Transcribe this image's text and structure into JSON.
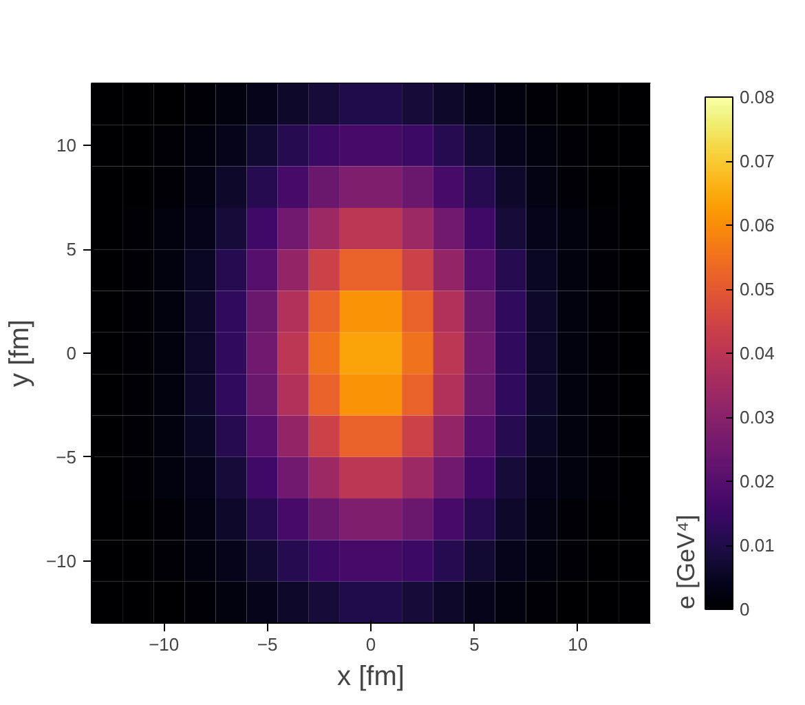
{
  "chart_data": {
    "type": "heatmap",
    "xlabel": "x [fm]",
    "ylabel": "y [fm]",
    "clabel": "e [GeV⁴]",
    "x": [
      -12.75,
      -11.25,
      -9.75,
      -8.25,
      -6.75,
      -5.25,
      -3.75,
      -2.25,
      -0.75,
      0.75,
      2.25,
      3.75,
      5.25,
      6.75,
      8.25,
      9.75,
      11.25,
      12.75
    ],
    "y": [
      12,
      10,
      8,
      6,
      4,
      2,
      0,
      -2,
      -4,
      -6,
      -8,
      -10,
      -12
    ],
    "cells": [
      [
        0.0,
        0.0,
        0.0,
        0.001,
        0.002,
        0.004,
        0.006,
        0.008,
        0.01,
        0.01,
        0.008,
        0.006,
        0.004,
        0.002,
        0.001,
        0.0,
        0.0,
        0.0
      ],
      [
        0.0,
        0.0,
        0.001,
        0.002,
        0.004,
        0.007,
        0.011,
        0.015,
        0.017,
        0.017,
        0.015,
        0.011,
        0.007,
        0.004,
        0.002,
        0.001,
        0.0,
        0.0
      ],
      [
        0.0,
        0.0,
        0.001,
        0.003,
        0.006,
        0.011,
        0.017,
        0.024,
        0.028,
        0.028,
        0.024,
        0.017,
        0.011,
        0.006,
        0.003,
        0.001,
        0.0,
        0.0
      ],
      [
        0.0,
        0.001,
        0.002,
        0.004,
        0.008,
        0.016,
        0.025,
        0.034,
        0.04,
        0.04,
        0.034,
        0.025,
        0.016,
        0.008,
        0.004,
        0.002,
        0.001,
        0.0
      ],
      [
        0.0,
        0.001,
        0.002,
        0.005,
        0.011,
        0.02,
        0.032,
        0.044,
        0.052,
        0.052,
        0.044,
        0.032,
        0.02,
        0.011,
        0.005,
        0.002,
        0.001,
        0.0
      ],
      [
        0.0,
        0.001,
        0.002,
        0.006,
        0.013,
        0.024,
        0.038,
        0.052,
        0.061,
        0.061,
        0.052,
        0.038,
        0.024,
        0.013,
        0.006,
        0.002,
        0.001,
        0.0
      ],
      [
        0.0,
        0.001,
        0.002,
        0.006,
        0.013,
        0.025,
        0.04,
        0.055,
        0.064,
        0.064,
        0.055,
        0.04,
        0.025,
        0.013,
        0.006,
        0.002,
        0.001,
        0.0
      ],
      [
        0.0,
        0.001,
        0.002,
        0.006,
        0.013,
        0.024,
        0.038,
        0.052,
        0.061,
        0.061,
        0.052,
        0.038,
        0.024,
        0.013,
        0.006,
        0.002,
        0.001,
        0.0
      ],
      [
        0.0,
        0.001,
        0.002,
        0.005,
        0.011,
        0.02,
        0.032,
        0.044,
        0.052,
        0.052,
        0.044,
        0.032,
        0.02,
        0.011,
        0.005,
        0.002,
        0.001,
        0.0
      ],
      [
        0.0,
        0.001,
        0.002,
        0.004,
        0.008,
        0.016,
        0.025,
        0.034,
        0.04,
        0.04,
        0.034,
        0.025,
        0.016,
        0.008,
        0.004,
        0.002,
        0.001,
        0.0
      ],
      [
        0.0,
        0.0,
        0.001,
        0.003,
        0.006,
        0.011,
        0.017,
        0.024,
        0.028,
        0.028,
        0.024,
        0.017,
        0.011,
        0.006,
        0.003,
        0.001,
        0.0,
        0.0
      ],
      [
        0.0,
        0.0,
        0.001,
        0.002,
        0.004,
        0.007,
        0.011,
        0.015,
        0.017,
        0.017,
        0.015,
        0.011,
        0.007,
        0.004,
        0.002,
        0.001,
        0.0,
        0.0
      ],
      [
        0.0,
        0.0,
        0.0,
        0.001,
        0.002,
        0.004,
        0.006,
        0.008,
        0.01,
        0.01,
        0.008,
        0.006,
        0.004,
        0.002,
        0.001,
        0.0,
        0.0,
        0.0
      ]
    ],
    "xlim": [
      -13.5,
      13.5
    ],
    "ylim": [
      -13,
      13
    ],
    "xticks": [
      -10,
      -5,
      0,
      5,
      10
    ],
    "yticks": [
      -10,
      -5,
      0,
      5,
      10
    ],
    "clim": [
      0,
      0.08
    ],
    "cticks": [
      0,
      0.01,
      0.02,
      0.03,
      0.04,
      0.05,
      0.06,
      0.07,
      0.08
    ]
  }
}
